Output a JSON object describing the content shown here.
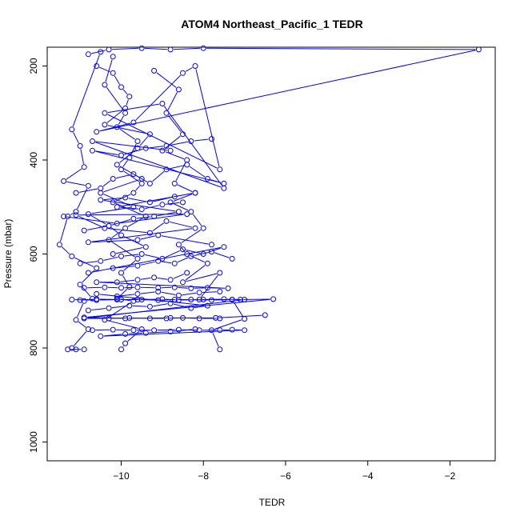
{
  "chart_data": {
    "type": "line",
    "title": "ATOM4 Northeast_Pacific_1 TEDR",
    "xlabel": "TEDR",
    "ylabel": "Pressure (mbar)",
    "xlim": [
      -11.8,
      -0.9
    ],
    "ylim": [
      1040,
      160
    ],
    "y_reversed": true,
    "x_ticks": [
      -10,
      -8,
      -6,
      -4,
      -2
    ],
    "y_ticks": [
      200,
      400,
      600,
      800,
      1000
    ],
    "grid": false,
    "color": "#0000ff",
    "marker": "open-circle",
    "series": [
      {
        "x": [
          -10.5,
          -11.2,
          -11.0,
          -10.9,
          -11.4,
          -10.8,
          -11.1,
          -11.3,
          -11.5,
          -11.2,
          -10.6,
          -11.0,
          -10.7,
          -10.9,
          -11.1,
          -10.8,
          -11.2,
          -11.3,
          -10.9,
          -11.1
        ],
        "y": [
          170,
          335,
          370,
          415,
          445,
          455,
          510,
          520,
          580,
          605,
          630,
          665,
          695,
          700,
          740,
          760,
          800,
          803,
          803,
          803
        ]
      },
      {
        "x": [
          -10.2,
          -10.4,
          -9.9,
          -10.1,
          -9.6,
          -9.8,
          -10.0,
          -9.5,
          -9.7,
          -10.2,
          -9.4,
          -9.9,
          -10.3,
          -9.6,
          -10.0,
          -9.8,
          -10.1,
          -9.7,
          -10.4,
          -9.5,
          -9.9,
          -10.0
        ],
        "y": [
          180,
          240,
          300,
          330,
          360,
          395,
          420,
          450,
          470,
          490,
          520,
          545,
          570,
          610,
          640,
          670,
          695,
          700,
          740,
          760,
          790,
          803
        ]
      },
      {
        "x": [
          -9.2,
          -8.6,
          -8.9,
          -8.5,
          -9.0,
          -8.4,
          -8.7,
          -8.2,
          -8.8,
          -8.3,
          -8.0,
          -8.6,
          -8.4,
          -7.9,
          -8.5,
          -7.6,
          -8.1,
          -7.3,
          -7.0,
          -7.8,
          -7.6
        ],
        "y": [
          210,
          250,
          300,
          345,
          380,
          400,
          450,
          470,
          490,
          510,
          545,
          580,
          600,
          620,
          660,
          640,
          697,
          697,
          738,
          762,
          803
        ]
      },
      {
        "x": [
          -10.8,
          -10.3,
          -9.5,
          -8.8,
          -8.0,
          -1.3,
          -10.6,
          -9.7,
          -8.5,
          -8.2,
          -7.6,
          -10.4,
          -9.0,
          -7.5,
          -10.7,
          -8.8
        ],
        "y": [
          175,
          165,
          162,
          165,
          162,
          165,
          340,
          320,
          215,
          200,
          420,
          300,
          280,
          460,
          360,
          380
        ]
      },
      {
        "x": [
          -10.6,
          -10.2,
          -10.0,
          -9.8,
          -9.9,
          -10.4,
          -9.3,
          -9.6,
          -10.1,
          -9.5,
          -10.5,
          -9.7,
          -10.8,
          -10.3,
          -10.0,
          -9.4,
          -10.2
        ],
        "y": [
          200,
          215,
          245,
          265,
          290,
          325,
          345,
          375,
          410,
          440,
          470,
          500,
          515,
          540,
          560,
          585,
          600
        ]
      },
      {
        "x": [
          -11.4,
          -10.1,
          -8.4,
          -11.1,
          -10.4,
          -9.3,
          -8.9,
          -8.2,
          -10.8,
          -9.6,
          -9.1,
          -7.8
        ],
        "y": [
          520,
          535,
          515,
          517,
          545,
          555,
          530,
          545,
          575,
          570,
          560,
          580
        ]
      },
      {
        "x": [
          -11.0,
          -10.6,
          -10.0,
          -9.5,
          -9.0,
          -8.6,
          -8.0,
          -7.5,
          -7.1,
          -6.3,
          -10.9,
          -9.9,
          -8.8,
          -7.7,
          -6.5
        ],
        "y": [
          698,
          696,
          697,
          697,
          696,
          698,
          697,
          696,
          697,
          696,
          735,
          737,
          736,
          736,
          730
        ]
      },
      {
        "x": [
          -10.7,
          -10.2,
          -9.7,
          -9.2,
          -8.6,
          -8.1,
          -7.6,
          -7.3,
          -7.0,
          -10.5,
          -9.9,
          -9.4,
          -8.8,
          -8.2
        ],
        "y": [
          762,
          761,
          762,
          762,
          761,
          762,
          762,
          761,
          762,
          775,
          770,
          768,
          765,
          760
        ]
      },
      {
        "x": [
          -10.9,
          -10.4,
          -10.0,
          -9.6,
          -9.1,
          -8.7,
          -8.3,
          -7.9,
          -7.4,
          -10.6,
          -10.1,
          -9.6,
          -9.2,
          -8.8,
          -8.4
        ],
        "y": [
          672,
          671,
          672,
          671,
          672,
          671,
          673,
          672,
          673,
          660,
          660,
          655,
          650,
          655,
          640
        ]
      },
      {
        "x": [
          -11.0,
          -10.5,
          -10.0,
          -9.5,
          -9.0,
          -8.5,
          -8.0,
          -7.5,
          -10.8,
          -10.2,
          -9.6,
          -9.1,
          -8.7,
          -8.3,
          -7.8,
          -7.3
        ],
        "y": [
          620,
          615,
          605,
          600,
          610,
          590,
          600,
          585,
          640,
          630,
          625,
          615,
          620,
          605,
          595,
          610
        ]
      },
      {
        "x": [
          -11.2,
          -10.6,
          -10.1,
          -9.6,
          -9.1,
          -8.7,
          -8.3,
          -7.8,
          -7.3,
          -7.0,
          -10.9,
          -10.3,
          -9.8,
          -9.3,
          -8.9,
          -8.5,
          -8.1,
          -7.6
        ],
        "y": [
          697,
          698,
          697,
          697,
          698,
          697,
          697,
          698,
          697,
          697,
          737,
          737,
          736,
          737,
          737,
          736,
          737,
          737
        ]
      },
      {
        "x": [
          -10.8,
          -10.3,
          -9.8,
          -9.3,
          -8.8,
          -8.3,
          -7.9,
          -10.6,
          -10.1,
          -9.6,
          -9.1,
          -8.6,
          -8.1,
          -7.6
        ],
        "y": [
          720,
          715,
          710,
          712,
          705,
          715,
          710,
          685,
          690,
          685,
          680,
          688,
          682,
          680
        ]
      },
      {
        "x": [
          -11.1,
          -10.5,
          -10.2,
          -9.7,
          -9.3,
          -8.9,
          -8.4,
          -7.9,
          -7.5,
          -10.7,
          -10.0,
          -9.4,
          -8.9,
          -8.3,
          -7.8
        ],
        "y": [
          470,
          460,
          440,
          430,
          450,
          420,
          410,
          440,
          450,
          380,
          390,
          375,
          370,
          360,
          355
        ]
      },
      {
        "x": [
          -10.9,
          -10.3,
          -9.7,
          -9.2,
          -8.6,
          -10.5,
          -9.9,
          -9.3,
          -8.7,
          -8.2,
          -10.1,
          -9.5,
          -9.0,
          -8.5
        ],
        "y": [
          550,
          540,
          525,
          520,
          510,
          485,
          480,
          490,
          478,
          470,
          500,
          505,
          495,
          490
        ]
      }
    ]
  }
}
